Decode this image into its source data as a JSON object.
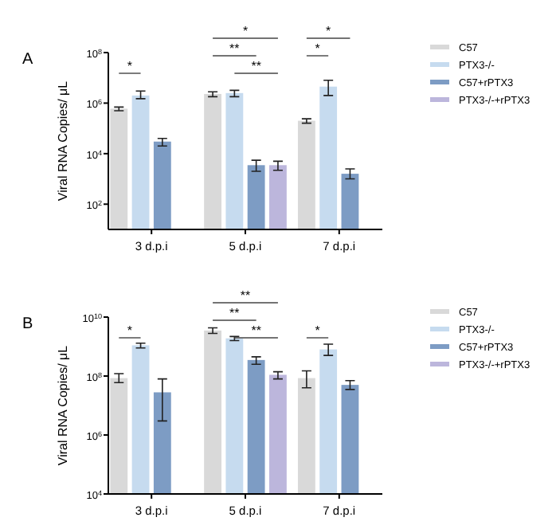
{
  "chart_data": [
    {
      "type": "bar",
      "title": "A",
      "ylabel": "Viral RNA Copies/ μL",
      "categories": [
        "3 d.p.i",
        "5 d.p.i",
        "7 d.p.i"
      ],
      "log": true,
      "ylim": [
        10,
        100000000
      ],
      "yticks": [
        {
          "value": 100,
          "label": "10$^{2}$"
        },
        {
          "value": 10000,
          "label": "10$^{4}$"
        },
        {
          "value": 1000000,
          "label": "10$^{6}$"
        },
        {
          "value": 100000000,
          "label": "10$^{8}$"
        }
      ],
      "legend": "right",
      "grid": false,
      "series": [
        {
          "name": "C57",
          "color": "#d9d9d9",
          "values": [
            600000,
            2300000,
            200000
          ],
          "errors": [
            [
              500000,
              700000
            ],
            [
              1800000,
              2800000
            ],
            [
              160000,
              240000
            ]
          ]
        },
        {
          "name": "PTX3-/-",
          "color": "#c6dbef",
          "values": [
            2000000,
            2500000,
            4500000
          ],
          "errors": [
            [
              1500000,
              3000000
            ],
            [
              1800000,
              3200000
            ],
            [
              2000000,
              8000000
            ]
          ]
        },
        {
          "name": "C57+rPTX3",
          "color": "#7d9cc4",
          "values": [
            30000,
            3500,
            1600
          ],
          "errors": [
            [
              20000,
              40000
            ],
            [
              2000,
              5500
            ],
            [
              1000,
              2500
            ]
          ]
        },
        {
          "name": "PTX3-/-+rPTX3",
          "color": "#bcb6dc",
          "values": [
            null,
            3500,
            null
          ],
          "errors": [
            null,
            [
              2200,
              5000
            ],
            null
          ]
        }
      ],
      "annotations": [
        "*",
        "*",
        "**",
        "**",
        "*",
        "*"
      ]
    },
    {
      "type": "bar",
      "title": "B",
      "ylabel": "Viral RNA Copies/ μL",
      "categories": [
        "3 d.p.i",
        "5 d.p.i",
        "7 d.p.i"
      ],
      "log": true,
      "ylim": [
        10000,
        10000000000
      ],
      "yticks": [
        {
          "value": 10000,
          "label": "10$^{4}$"
        },
        {
          "value": 1000000,
          "label": "10$^{6}$"
        },
        {
          "value": 100000000,
          "label": "10$^{8}$"
        },
        {
          "value": 10000000000,
          "label": "10$^{10}$"
        }
      ],
      "legend": "right",
      "grid": false,
      "series": [
        {
          "name": "C57",
          "color": "#d9d9d9",
          "values": [
            85000000,
            3500000000,
            85000000
          ],
          "errors": [
            [
              60000000,
              120000000
            ],
            [
              2800000000,
              4300000000
            ],
            [
              40000000,
              150000000
            ]
          ]
        },
        {
          "name": "PTX3-/-",
          "color": "#c6dbef",
          "values": [
            1100000000,
            1900000000,
            800000000
          ],
          "errors": [
            [
              900000000,
              1300000000
            ],
            [
              1600000000,
              2200000000
            ],
            [
              500000000,
              1200000000
            ]
          ]
        },
        {
          "name": "C57+rPTX3",
          "color": "#7d9cc4",
          "values": [
            28000000,
            350000000,
            50000000
          ],
          "errors": [
            [
              3000000,
              80000000
            ],
            [
              250000000,
              450000000
            ],
            [
              35000000,
              70000000
            ]
          ]
        },
        {
          "name": "PTX3-/-+rPTX3",
          "color": "#bcb6dc",
          "values": [
            null,
            110000000,
            null
          ],
          "errors": [
            null,
            [
              80000000,
              140000000
            ],
            null
          ]
        }
      ],
      "annotations": [
        "*",
        "**",
        "**",
        "**",
        "*"
      ]
    }
  ]
}
